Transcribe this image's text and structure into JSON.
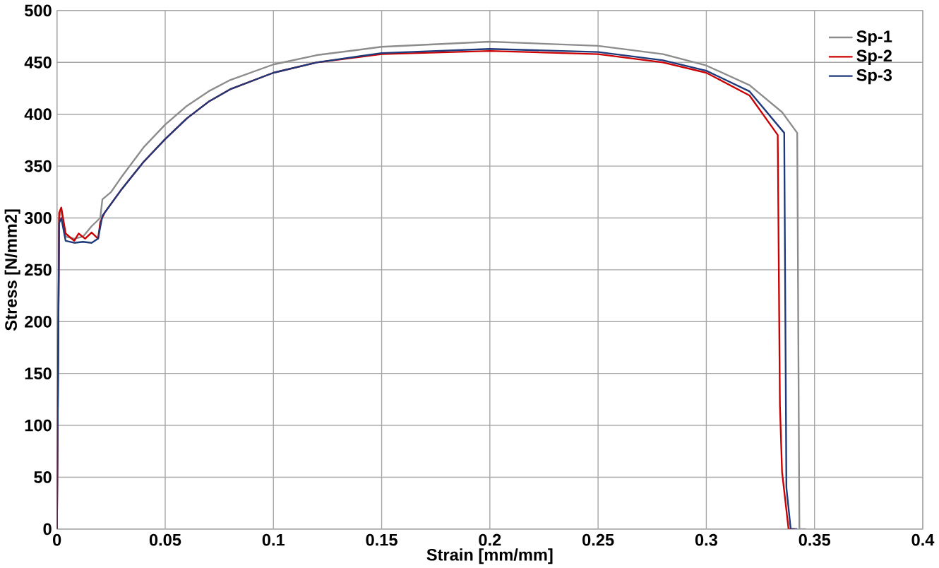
{
  "chart_data": {
    "type": "line",
    "xlabel": "Strain [mm/mm]",
    "ylabel": "Stress [N/mm2]",
    "xlim": [
      0,
      0.4
    ],
    "ylim": [
      0,
      500
    ],
    "xticks": [
      0,
      0.05,
      0.1,
      0.15,
      0.2,
      0.25,
      0.3,
      0.35,
      0.4
    ],
    "yticks": [
      0,
      50,
      100,
      150,
      200,
      250,
      300,
      350,
      400,
      450,
      500
    ],
    "grid": true,
    "legend": "top right",
    "marker": "none",
    "line_style": "solid",
    "series": [
      {
        "name": "Sp-1",
        "color": "#8c8c8c",
        "x": [
          0,
          0.001,
          0.002,
          0.004,
          0.008,
          0.012,
          0.016,
          0.02,
          0.021,
          0.025,
          0.03,
          0.04,
          0.05,
          0.06,
          0.07,
          0.08,
          0.1,
          0.12,
          0.15,
          0.2,
          0.25,
          0.28,
          0.3,
          0.32,
          0.335,
          0.342,
          0.343,
          0.346
        ],
        "values": [
          0,
          300,
          308,
          282,
          280,
          282,
          292,
          300,
          318,
          325,
          340,
          368,
          390,
          408,
          422,
          433,
          448,
          457,
          465,
          470,
          466,
          458,
          447,
          428,
          402,
          382,
          0,
          0
        ]
      },
      {
        "name": "Sp-2",
        "color": "#cc0000",
        "x": [
          0,
          0.001,
          0.002,
          0.004,
          0.008,
          0.01,
          0.013,
          0.016,
          0.019,
          0.02,
          0.022,
          0.03,
          0.04,
          0.05,
          0.06,
          0.07,
          0.08,
          0.1,
          0.12,
          0.15,
          0.2,
          0.25,
          0.28,
          0.3,
          0.32,
          0.333,
          0.334,
          0.335,
          0.338,
          0.341
        ],
        "values": [
          0,
          305,
          310,
          285,
          278,
          285,
          280,
          286,
          280,
          296,
          305,
          328,
          354,
          376,
          396,
          412,
          424,
          440,
          450,
          458,
          461,
          458,
          450,
          440,
          418,
          380,
          120,
          55,
          0,
          0
        ]
      },
      {
        "name": "Sp-3",
        "color": "#1f3a7a",
        "x": [
          0,
          0.001,
          0.002,
          0.004,
          0.008,
          0.012,
          0.016,
          0.019,
          0.021,
          0.03,
          0.04,
          0.05,
          0.06,
          0.07,
          0.08,
          0.1,
          0.12,
          0.15,
          0.2,
          0.25,
          0.28,
          0.3,
          0.32,
          0.336,
          0.337,
          0.339,
          0.342
        ],
        "values": [
          0,
          295,
          300,
          278,
          276,
          277,
          276,
          280,
          302,
          328,
          354,
          376,
          396,
          412,
          424,
          440,
          450,
          459,
          463,
          460,
          452,
          442,
          422,
          382,
          40,
          0,
          0
        ]
      }
    ]
  }
}
